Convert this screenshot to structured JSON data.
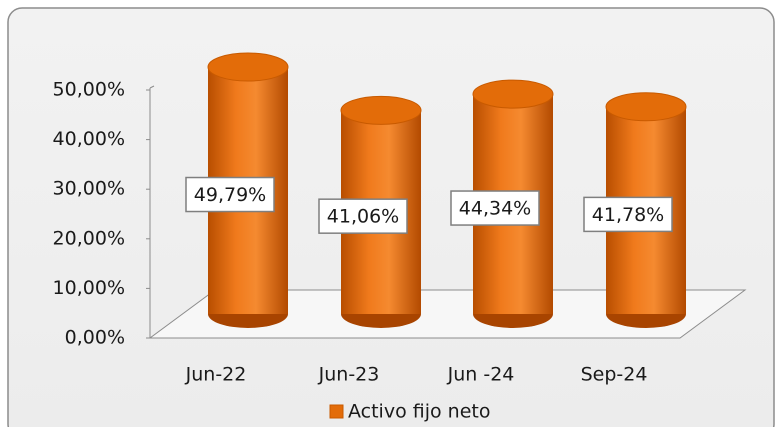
{
  "chart_data": {
    "type": "bar",
    "categories": [
      "Jun-22",
      "Jun-23",
      "Jun -24",
      "Sep-24"
    ],
    "series": [
      {
        "name": "Activo fijo neto",
        "color": "#e36c09",
        "values": [
          49.79,
          41.06,
          44.34,
          41.78
        ],
        "value_labels": [
          "49,79%",
          "41,06%",
          "44,34%",
          "41,78%"
        ]
      }
    ],
    "ylim": [
      0,
      50
    ],
    "yticks": [
      {
        "value": 0,
        "label": "0,00%"
      },
      {
        "value": 10,
        "label": "10,00%"
      },
      {
        "value": 20,
        "label": "20,00%"
      },
      {
        "value": 30,
        "label": "30,00%"
      },
      {
        "value": 40,
        "label": "40,00%"
      },
      {
        "value": 50,
        "label": "50,00%"
      }
    ],
    "legend": "bottom"
  }
}
